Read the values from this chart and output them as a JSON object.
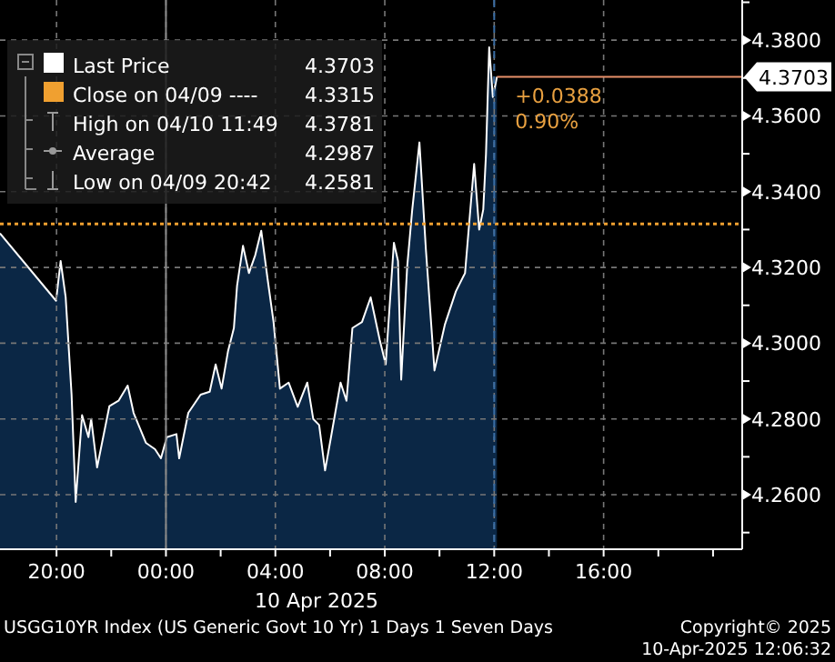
{
  "chart_data": {
    "type": "area",
    "xlabel": "10 Apr 2025",
    "x": [
      "2025-04-09T17:56",
      "2025-04-09T19:59",
      "2025-04-09T20:09",
      "2025-04-09T20:20",
      "2025-04-09T20:33",
      "2025-04-09T20:42",
      "2025-04-09T20:56",
      "2025-04-09T21:10",
      "2025-04-09T21:16",
      "2025-04-09T21:29",
      "2025-04-09T21:56",
      "2025-04-09T22:16",
      "2025-04-09T22:36",
      "2025-04-09T22:49",
      "2025-04-09T23:16",
      "2025-04-09T23:36",
      "2025-04-09T23:49",
      "2025-04-10T00:02",
      "2025-04-10T00:23",
      "2025-04-10T00:29",
      "2025-04-10T00:49",
      "2025-04-10T01:16",
      "2025-04-10T01:36",
      "2025-04-10T01:49",
      "2025-04-10T02:02",
      "2025-04-10T02:16",
      "2025-04-10T02:29",
      "2025-04-10T02:36",
      "2025-04-10T02:49",
      "2025-04-10T03:02",
      "2025-04-10T03:16",
      "2025-04-10T03:29",
      "2025-04-10T03:43",
      "2025-04-10T03:56",
      "2025-04-10T04:10",
      "2025-04-10T04:29",
      "2025-04-10T04:49",
      "2025-04-10T05:10",
      "2025-04-10T05:23",
      "2025-04-10T05:36",
      "2025-04-10T05:49",
      "2025-04-10T06:02",
      "2025-04-10T06:23",
      "2025-04-10T06:36",
      "2025-04-10T06:49",
      "2025-04-10T07:10",
      "2025-04-10T07:29",
      "2025-04-10T07:49",
      "2025-04-10T08:02",
      "2025-04-10T08:20",
      "2025-04-10T08:29",
      "2025-04-10T08:36",
      "2025-04-10T08:49",
      "2025-04-10T09:00",
      "2025-04-10T09:16",
      "2025-04-10T09:30",
      "2025-04-10T09:49",
      "2025-04-10T10:12",
      "2025-04-10T10:36",
      "2025-04-10T10:56",
      "2025-04-10T11:16",
      "2025-04-10T11:27",
      "2025-04-10T11:36",
      "2025-04-10T11:42",
      "2025-04-10T11:49",
      "2025-04-10T11:57",
      "2025-04-10T12:06"
    ],
    "series": [
      {
        "name": "Last Price",
        "color": "#ffffff",
        "values": [
          4.329,
          4.3112,
          4.3217,
          4.3122,
          4.2864,
          4.2581,
          4.281,
          4.2752,
          4.28,
          4.2672,
          4.2834,
          4.2848,
          4.2888,
          4.2816,
          4.2737,
          4.272,
          4.2696,
          4.2752,
          4.276,
          4.2696,
          4.2816,
          4.2864,
          4.2872,
          4.2944,
          4.288,
          4.2978,
          4.304,
          4.3152,
          4.3257,
          4.3185,
          4.3233,
          4.3297,
          4.3169,
          4.3056,
          4.288,
          4.2896,
          4.2832,
          4.2896,
          4.28,
          4.2784,
          4.2664,
          4.2752,
          4.2896,
          4.2848,
          4.304,
          4.3056,
          4.3121,
          4.3008,
          4.2944,
          4.3265,
          4.3217,
          4.2904,
          4.32,
          4.335,
          4.353,
          4.325,
          4.2928,
          4.305,
          4.3137,
          4.3185,
          4.3473,
          4.33,
          4.3353,
          4.35,
          4.3781,
          4.365,
          4.3703
        ]
      }
    ],
    "xlim": [
      "2025-04-09T17:56",
      "2025-04-10T21:04"
    ],
    "xticks": [
      {
        "value": "2025-04-09T20:00",
        "label": "20:00"
      },
      {
        "value": "2025-04-09T22:00",
        "label": null
      },
      {
        "value": "2025-04-10T00:00",
        "label": "00:00"
      },
      {
        "value": "2025-04-10T02:00",
        "label": null
      },
      {
        "value": "2025-04-10T04:00",
        "label": "04:00"
      },
      {
        "value": "2025-04-10T06:00",
        "label": null
      },
      {
        "value": "2025-04-10T08:00",
        "label": "08:00"
      },
      {
        "value": "2025-04-10T10:00",
        "label": null
      },
      {
        "value": "2025-04-10T12:00",
        "label": "12:00"
      },
      {
        "value": "2025-04-10T14:00",
        "label": null
      },
      {
        "value": "2025-04-10T16:00",
        "label": "16:00"
      },
      {
        "value": "2025-04-10T18:00",
        "label": null
      },
      {
        "value": "2025-04-10T20:00",
        "label": null
      }
    ],
    "ylim": [
      4.2456,
      4.3906
    ],
    "yticks": [
      {
        "value": 4.25,
        "label": null
      },
      {
        "value": 4.26,
        "label": "4.2600"
      },
      {
        "value": 4.27,
        "label": null
      },
      {
        "value": 4.28,
        "label": "4.2800"
      },
      {
        "value": 4.29,
        "label": null
      },
      {
        "value": 4.3,
        "label": "4.3000"
      },
      {
        "value": 4.31,
        "label": null
      },
      {
        "value": 4.32,
        "label": "4.3200"
      },
      {
        "value": 4.33,
        "label": null
      },
      {
        "value": 4.34,
        "label": "4.3400"
      },
      {
        "value": 4.35,
        "label": null
      },
      {
        "value": 4.36,
        "label": "4.3600"
      },
      {
        "value": 4.37,
        "label": null
      },
      {
        "value": 4.38,
        "label": "4.3800"
      },
      {
        "value": 4.39,
        "label": null
      }
    ],
    "grid": true,
    "legend": "top left",
    "ref_lines": [
      {
        "axis": "y",
        "value": 4.3315,
        "label": "Close on 04/09 ----",
        "color": "#f0a030",
        "line_style": "dotted"
      },
      {
        "axis": "y",
        "value": 4.3703,
        "label": "4.3703",
        "color": "#e8906a",
        "line_style": "solid"
      },
      {
        "axis": "x",
        "value": "2025-04-10T00:00",
        "color": "#8a8a8a",
        "line_style": "solid"
      },
      {
        "axis": "x",
        "value": "2025-04-10T12:00",
        "color": "#3a6ea5",
        "line_style": "dashed"
      }
    ],
    "annotations": [
      "+0.0388",
      "0.90%",
      "4.3703",
      "4.3315",
      "High on 04/10 11:49",
      "4.3781",
      "Average",
      "4.2987",
      "Low on 04/09 20:42",
      "4.2581",
      "USGG10YR Index (US Generic Govt 10 Yr) 1 Days 1 Seven Days",
      "Copyright© 2025",
      "10-Apr-2025 12:06:32"
    ]
  }
}
